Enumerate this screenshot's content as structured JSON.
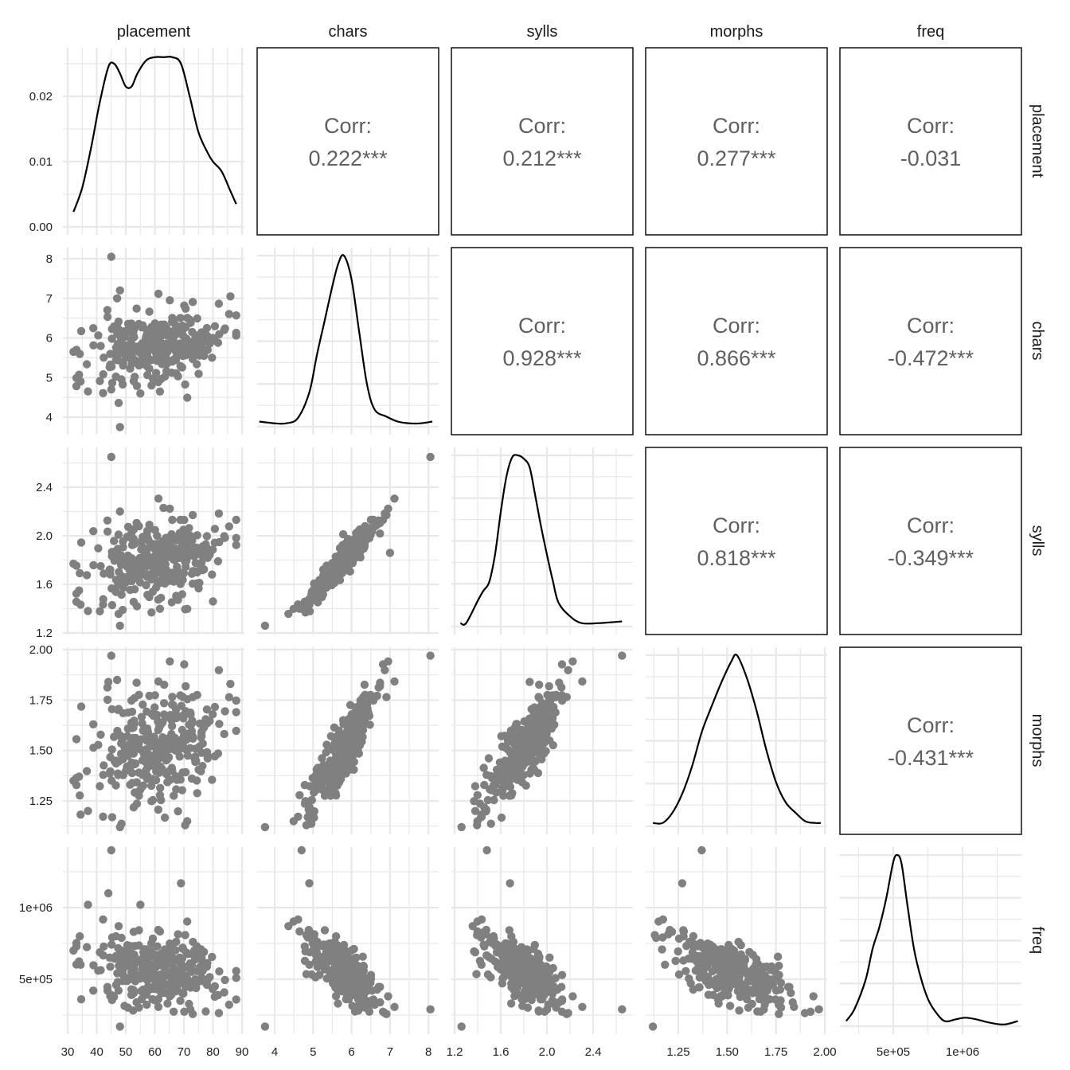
{
  "chart_data": {
    "type": "scatter-matrix",
    "title": "",
    "variables": [
      "placement",
      "chars",
      "sylls",
      "morphs",
      "freq"
    ],
    "column_strip_labels": [
      "placement",
      "chars",
      "sylls",
      "morphs",
      "freq"
    ],
    "row_strip_labels": [
      "placement",
      "chars",
      "sylls",
      "morphs",
      "freq"
    ],
    "x_axes": [
      {
        "variable": "placement",
        "ticks": [
          "30",
          "40",
          "50",
          "60",
          "70",
          "80",
          "90"
        ],
        "values": [
          30,
          40,
          50,
          60,
          70,
          80,
          90
        ],
        "range": [
          31,
          89
        ]
      },
      {
        "variable": "chars",
        "ticks": [
          "4",
          "5",
          "6",
          "7",
          "8"
        ],
        "values": [
          4,
          5,
          6,
          7,
          8
        ],
        "range": [
          3.55,
          8.2
        ]
      },
      {
        "variable": "sylls",
        "ticks": [
          "1.2",
          "1.6",
          "2.0",
          "2.4"
        ],
        "values": [
          1.2,
          1.6,
          2.0,
          2.4
        ],
        "range": [
          1.2,
          2.7
        ]
      },
      {
        "variable": "morphs",
        "ticks": [
          "1.25",
          "1.50",
          "1.75",
          "2.00"
        ],
        "values": [
          1.25,
          1.5,
          1.75,
          2.0
        ],
        "range": [
          1.08,
          2.02
        ]
      },
      {
        "variable": "freq",
        "ticks": [
          "5e+05",
          "1e+06"
        ],
        "values": [
          500000,
          1000000
        ],
        "range": [
          150000,
          1420000
        ]
      }
    ],
    "y_axes": [
      {
        "variable": "placement",
        "panel": "density",
        "ticks": [
          "0.00",
          "0.01",
          "0.02"
        ],
        "values": [
          0,
          0.01,
          0.02
        ]
      },
      {
        "variable": "chars",
        "ticks": [
          "4",
          "5",
          "6",
          "7",
          "8"
        ],
        "values": [
          4,
          5,
          6,
          7,
          8
        ],
        "range": [
          3.6,
          8.2
        ]
      },
      {
        "variable": "sylls",
        "ticks": [
          "1.2",
          "1.6",
          "2.0",
          "2.4"
        ],
        "values": [
          1.2,
          1.6,
          2.0,
          2.4
        ],
        "range": [
          1.2,
          2.7
        ]
      },
      {
        "variable": "morphs",
        "ticks": [
          "1.25",
          "1.50",
          "1.75",
          "2.00"
        ],
        "values": [
          1.25,
          1.5,
          1.75,
          2.0
        ],
        "range": [
          1.1,
          2.0
        ]
      },
      {
        "variable": "freq",
        "ticks": [
          "5e+05",
          "1e+06"
        ],
        "values": [
          500000,
          1000000
        ],
        "range": [
          150000,
          1420000
        ]
      }
    ],
    "correlations": [
      {
        "row": "placement",
        "col": "chars",
        "label": "Corr:",
        "value": "0.222***"
      },
      {
        "row": "placement",
        "col": "sylls",
        "label": "Corr:",
        "value": "0.212***"
      },
      {
        "row": "placement",
        "col": "morphs",
        "label": "Corr:",
        "value": "0.277***"
      },
      {
        "row": "placement",
        "col": "freq",
        "label": "Corr:",
        "value": "-0.031"
      },
      {
        "row": "chars",
        "col": "sylls",
        "label": "Corr:",
        "value": "0.928***"
      },
      {
        "row": "chars",
        "col": "morphs",
        "label": "Corr:",
        "value": "0.866***"
      },
      {
        "row": "chars",
        "col": "freq",
        "label": "Corr:",
        "value": "-0.472***"
      },
      {
        "row": "sylls",
        "col": "morphs",
        "label": "Corr:",
        "value": "0.818***"
      },
      {
        "row": "sylls",
        "col": "freq",
        "label": "Corr:",
        "value": "-0.349***"
      },
      {
        "row": "morphs",
        "col": "freq",
        "label": "Corr:",
        "value": "-0.431***"
      }
    ],
    "densities": {
      "placement": {
        "x": [
          32,
          35,
          38,
          41,
          44,
          46,
          48,
          50,
          52,
          54,
          57,
          60,
          63,
          66,
          69,
          72,
          75,
          78,
          80,
          83,
          86,
          88
        ],
        "y": [
          0.0023,
          0.006,
          0.012,
          0.019,
          0.0245,
          0.025,
          0.0235,
          0.0215,
          0.0215,
          0.0235,
          0.0255,
          0.026,
          0.026,
          0.026,
          0.025,
          0.02,
          0.0145,
          0.0115,
          0.01,
          0.0085,
          0.0055,
          0.0035
        ]
      },
      "chars": {
        "x": [
          3.6,
          4.0,
          4.3,
          4.6,
          4.9,
          5.1,
          5.3,
          5.5,
          5.65,
          5.8,
          6.0,
          6.2,
          6.4,
          6.6,
          6.9,
          7.2,
          7.5,
          7.8,
          8.1
        ],
        "rel": [
          0.03,
          0.02,
          0.02,
          0.05,
          0.2,
          0.42,
          0.62,
          0.82,
          0.95,
          1.0,
          0.86,
          0.55,
          0.25,
          0.1,
          0.06,
          0.03,
          0.02,
          0.02,
          0.03
        ]
      },
      "sylls": {
        "x": [
          1.25,
          1.3,
          1.4,
          1.45,
          1.5,
          1.55,
          1.6,
          1.65,
          1.7,
          1.75,
          1.8,
          1.85,
          1.9,
          1.95,
          2.0,
          2.05,
          2.1,
          2.2,
          2.3,
          2.45,
          2.65
        ],
        "rel": [
          0.02,
          0.02,
          0.15,
          0.21,
          0.26,
          0.42,
          0.67,
          0.88,
          0.99,
          1.0,
          0.98,
          0.93,
          0.76,
          0.58,
          0.42,
          0.27,
          0.14,
          0.06,
          0.02,
          0.02,
          0.03
        ]
      },
      "morphs": {
        "x": [
          1.12,
          1.17,
          1.22,
          1.27,
          1.32,
          1.37,
          1.42,
          1.47,
          1.52,
          1.55,
          1.6,
          1.65,
          1.7,
          1.75,
          1.8,
          1.85,
          1.9,
          1.95,
          1.98
        ],
        "rel": [
          0.02,
          0.02,
          0.08,
          0.19,
          0.35,
          0.55,
          0.7,
          0.84,
          0.96,
          1.0,
          0.87,
          0.68,
          0.45,
          0.26,
          0.14,
          0.08,
          0.03,
          0.02,
          0.02
        ]
      },
      "freq": {
        "x": [
          160000,
          220000,
          300000,
          350000,
          400000,
          450000,
          500000,
          530000,
          560000,
          600000,
          650000,
          700000,
          750000,
          800000,
          870000,
          950000,
          1020000,
          1100000,
          1200000,
          1300000,
          1400000
        ],
        "rel": [
          0.03,
          0.1,
          0.27,
          0.45,
          0.58,
          0.75,
          0.96,
          1.0,
          0.95,
          0.72,
          0.45,
          0.28,
          0.16,
          0.09,
          0.03,
          0.04,
          0.05,
          0.04,
          0.02,
          0.01,
          0.03
        ]
      }
    },
    "scatter_style": {
      "point_color": "#808080",
      "point_radius": 5.2
    },
    "scatter_outliers": {
      "placement_chars": [
        [
          45,
          8.05
        ],
        [
          48,
          7.2
        ],
        [
          47,
          7.0
        ],
        [
          86,
          7.05
        ],
        [
          32,
          5.65
        ],
        [
          37,
          4.65
        ],
        [
          48,
          3.75
        ],
        [
          55,
          4.6
        ],
        [
          45,
          4.7
        ]
      ],
      "placement_sylls": [
        [
          45,
          2.65
        ],
        [
          48,
          2.2
        ],
        [
          32,
          1.77
        ],
        [
          37,
          1.38
        ],
        [
          48,
          1.26
        ],
        [
          63,
          2.23
        ],
        [
          80,
          1.46
        ]
      ],
      "placement_morphs": [
        [
          45,
          1.97
        ],
        [
          44,
          1.84
        ],
        [
          47,
          1.85
        ],
        [
          37,
          1.2
        ],
        [
          48,
          1.12
        ],
        [
          32,
          1.35
        ],
        [
          86,
          1.83
        ]
      ],
      "placement_freq": [
        [
          45,
          1400000
        ],
        [
          44,
          1100000
        ],
        [
          69,
          1170000
        ],
        [
          37,
          1020000
        ],
        [
          55,
          1020000
        ],
        [
          32,
          700000
        ],
        [
          48,
          170000
        ]
      ],
      "chars_sylls": [
        [
          3.75,
          1.26
        ],
        [
          8.05,
          2.65
        ],
        [
          7.0,
          1.86
        ]
      ],
      "chars_morphs": [
        [
          3.75,
          1.12
        ],
        [
          8.05,
          1.97
        ]
      ],
      "chars_freq": [
        [
          3.75,
          170000
        ],
        [
          4.7,
          1400000
        ],
        [
          4.9,
          1170000
        ],
        [
          8.05,
          290000
        ]
      ],
      "sylls_morphs": [
        [
          1.26,
          1.12
        ],
        [
          1.38,
          1.2
        ],
        [
          2.65,
          1.97
        ],
        [
          1.85,
          1.84
        ]
      ],
      "sylls_freq": [
        [
          1.26,
          170000
        ],
        [
          1.48,
          1400000
        ],
        [
          1.68,
          1170000
        ],
        [
          2.65,
          290000
        ]
      ],
      "morphs_freq": [
        [
          1.12,
          170000
        ],
        [
          1.37,
          1400000
        ],
        [
          1.97,
          290000
        ],
        [
          1.27,
          1170000
        ]
      ]
    },
    "grid": true,
    "panel_border_color": "#000000",
    "gridline_color": "#e8e8e8",
    "legend": null
  }
}
